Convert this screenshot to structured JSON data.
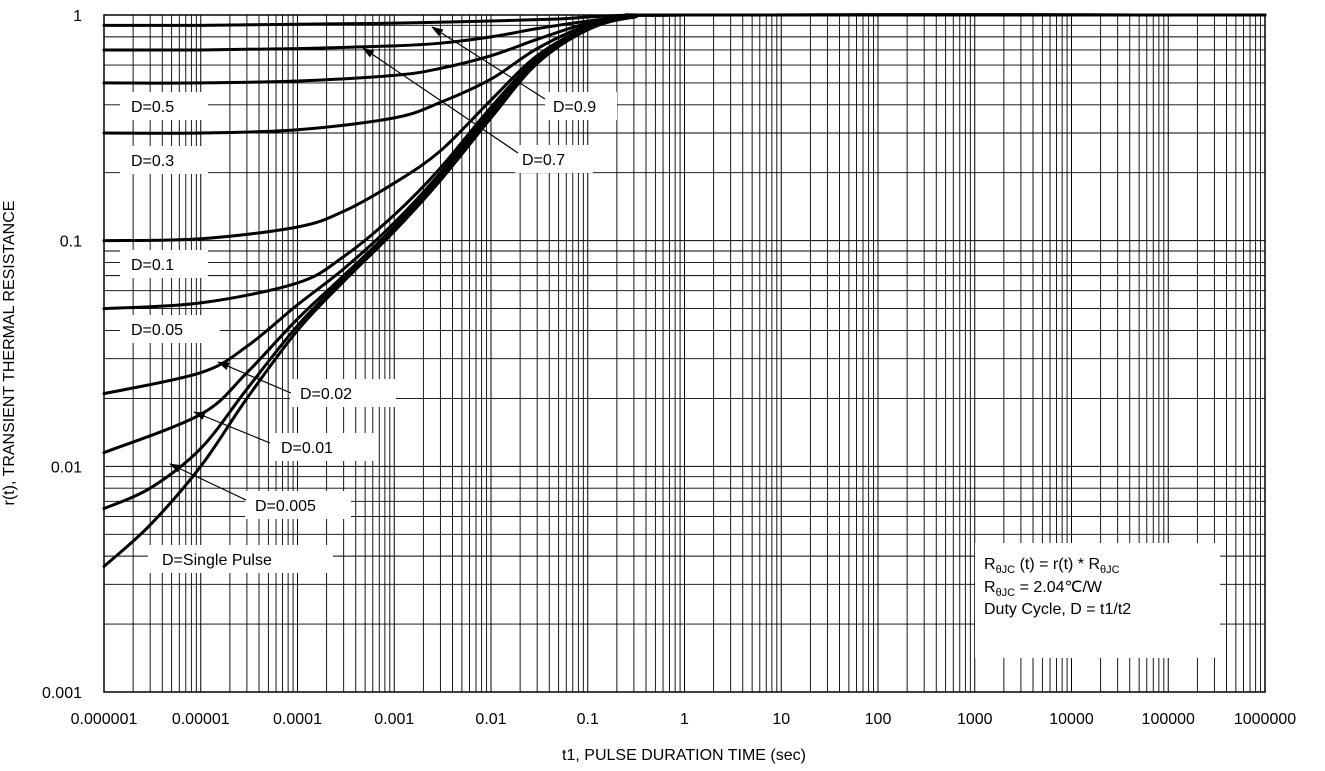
{
  "chart_data": {
    "type": "line",
    "title": "",
    "xlabel": "t1, PULSE DURATION TIME (sec)",
    "ylabel": "r(t), TRANSIENT THERMAL RESISTANCE",
    "xscale": "log",
    "yscale": "log",
    "xlim": [
      1e-06,
      1000000
    ],
    "ylim": [
      0.001,
      1
    ],
    "grid": true,
    "x_tick_labels": [
      "0.000001",
      "0.00001",
      "0.0001",
      "0.001",
      "0.01",
      "0.1",
      "1",
      "10",
      "100",
      "1000",
      "10000",
      "100000",
      "1000000"
    ],
    "y_tick_labels": [
      "0.001",
      "0.01",
      "0.1",
      "1"
    ],
    "series": [
      {
        "name": "D=0.9",
        "x": [
          1e-06,
          1e-05,
          0.0001,
          0.001,
          0.01,
          0.05,
          0.1,
          0.3,
          1,
          1000000
        ],
        "y": [
          0.9,
          0.9,
          0.91,
          0.92,
          0.94,
          0.96,
          0.98,
          1.0,
          1.0,
          1.0
        ]
      },
      {
        "name": "D=0.7",
        "x": [
          1e-06,
          1e-05,
          0.0001,
          0.001,
          0.003,
          0.01,
          0.03,
          0.1,
          0.3,
          1,
          1000000
        ],
        "y": [
          0.7,
          0.7,
          0.71,
          0.73,
          0.75,
          0.8,
          0.87,
          0.94,
          0.99,
          1.0,
          1.0
        ]
      },
      {
        "name": "D=0.5",
        "x": [
          1e-06,
          1e-05,
          0.0001,
          0.001,
          0.003,
          0.01,
          0.03,
          0.1,
          0.3,
          1,
          1000000
        ],
        "y": [
          0.5,
          0.5,
          0.51,
          0.54,
          0.58,
          0.66,
          0.78,
          0.92,
          0.99,
          1.0,
          1.0
        ]
      },
      {
        "name": "D=0.3",
        "x": [
          1e-06,
          1e-05,
          0.0001,
          0.001,
          0.003,
          0.01,
          0.03,
          0.1,
          0.3,
          1,
          1000000
        ],
        "y": [
          0.3,
          0.3,
          0.31,
          0.35,
          0.41,
          0.52,
          0.71,
          0.9,
          0.99,
          1.0,
          1.0
        ]
      },
      {
        "name": "D=0.1",
        "x": [
          1e-06,
          1e-05,
          0.0001,
          0.0003,
          0.001,
          0.003,
          0.01,
          0.03,
          0.1,
          0.3,
          1,
          1000000
        ],
        "y": [
          0.1,
          0.102,
          0.115,
          0.135,
          0.18,
          0.25,
          0.42,
          0.66,
          0.88,
          0.98,
          1.0,
          1.0
        ]
      },
      {
        "name": "D=0.05",
        "x": [
          1e-06,
          1e-05,
          0.0001,
          0.0003,
          0.001,
          0.003,
          0.01,
          0.03,
          0.1,
          0.3,
          1,
          1000000
        ],
        "y": [
          0.05,
          0.053,
          0.065,
          0.085,
          0.13,
          0.21,
          0.39,
          0.64,
          0.87,
          0.98,
          1.0,
          1.0
        ]
      },
      {
        "name": "D=0.02",
        "x": [
          1e-06,
          1e-05,
          3e-05,
          0.0001,
          0.0003,
          0.001,
          0.003,
          0.01,
          0.03,
          0.1,
          0.3,
          1,
          1000000
        ],
        "y": [
          0.021,
          0.026,
          0.034,
          0.052,
          0.075,
          0.12,
          0.2,
          0.38,
          0.63,
          0.87,
          0.98,
          1.0,
          1.0
        ]
      },
      {
        "name": "D=0.01",
        "x": [
          1e-06,
          1e-05,
          3e-05,
          0.0001,
          0.0003,
          0.001,
          0.003,
          0.01,
          0.03,
          0.1,
          0.3,
          1,
          1000000
        ],
        "y": [
          0.0115,
          0.017,
          0.026,
          0.045,
          0.07,
          0.115,
          0.195,
          0.37,
          0.63,
          0.87,
          0.98,
          1.0,
          1.0
        ]
      },
      {
        "name": "D=0.005",
        "x": [
          1e-06,
          3e-06,
          1e-05,
          3e-05,
          0.0001,
          0.0003,
          0.001,
          0.003,
          0.01,
          0.03,
          0.1,
          0.3,
          1,
          1000000
        ],
        "y": [
          0.0065,
          0.008,
          0.012,
          0.022,
          0.042,
          0.068,
          0.112,
          0.19,
          0.36,
          0.62,
          0.87,
          0.98,
          1.0,
          1.0
        ]
      },
      {
        "name": "D=Single Pulse",
        "x": [
          1e-06,
          3e-06,
          1e-05,
          3e-05,
          0.0001,
          0.0003,
          0.001,
          0.003,
          0.01,
          0.03,
          0.1,
          0.3,
          1,
          1000000
        ],
        "y": [
          0.0036,
          0.0055,
          0.01,
          0.02,
          0.04,
          0.066,
          0.11,
          0.185,
          0.35,
          0.61,
          0.86,
          0.98,
          1.0,
          1.0
        ]
      }
    ],
    "annotation_box": {
      "line1": {
        "r": "R",
        "sub1": "θJC",
        "mid": " (t) = r(t) * R",
        "sub2": "θJC"
      },
      "line2": {
        "r": "R",
        "sub": "θJC",
        "rest": " = 2.04℃/W"
      },
      "line3": "Duty Cycle, D = t1/t2"
    }
  }
}
